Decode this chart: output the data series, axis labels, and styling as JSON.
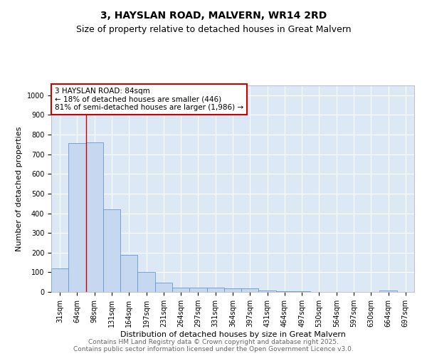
{
  "title_line1": "3, HAYSLAN ROAD, MALVERN, WR14 2RD",
  "title_line2": "Size of property relative to detached houses in Great Malvern",
  "xlabel": "Distribution of detached houses by size in Great Malvern",
  "ylabel": "Number of detached properties",
  "bar_color": "#c5d8ef",
  "bar_edge_color": "#6699cc",
  "categories": [
    "31sqm",
    "64sqm",
    "98sqm",
    "131sqm",
    "164sqm",
    "197sqm",
    "231sqm",
    "264sqm",
    "297sqm",
    "331sqm",
    "364sqm",
    "397sqm",
    "431sqm",
    "464sqm",
    "497sqm",
    "530sqm",
    "564sqm",
    "597sqm",
    "630sqm",
    "664sqm",
    "697sqm"
  ],
  "values": [
    118,
    758,
    760,
    420,
    190,
    100,
    48,
    23,
    23,
    20,
    18,
    18,
    8,
    3,
    3,
    0,
    0,
    0,
    0,
    8,
    0
  ],
  "ylim": [
    0,
    1050
  ],
  "yticks": [
    0,
    100,
    200,
    300,
    400,
    500,
    600,
    700,
    800,
    900,
    1000
  ],
  "red_line_x": 1.5,
  "annotation_text": "3 HAYSLAN ROAD: 84sqm\n← 18% of detached houses are smaller (446)\n81% of semi-detached houses are larger (1,986) →",
  "annotation_box_color": "#ffffff",
  "annotation_border_color": "#cc0000",
  "footer_line1": "Contains HM Land Registry data © Crown copyright and database right 2025.",
  "footer_line2": "Contains public sector information licensed under the Open Government Licence v3.0.",
  "bg_color": "#ffffff",
  "plot_bg_color": "#dce8f5",
  "grid_color": "#ffffff",
  "title_fontsize": 10,
  "subtitle_fontsize": 9,
  "label_fontsize": 8,
  "tick_fontsize": 7,
  "footer_fontsize": 6.5,
  "annotation_fontsize": 7.5
}
